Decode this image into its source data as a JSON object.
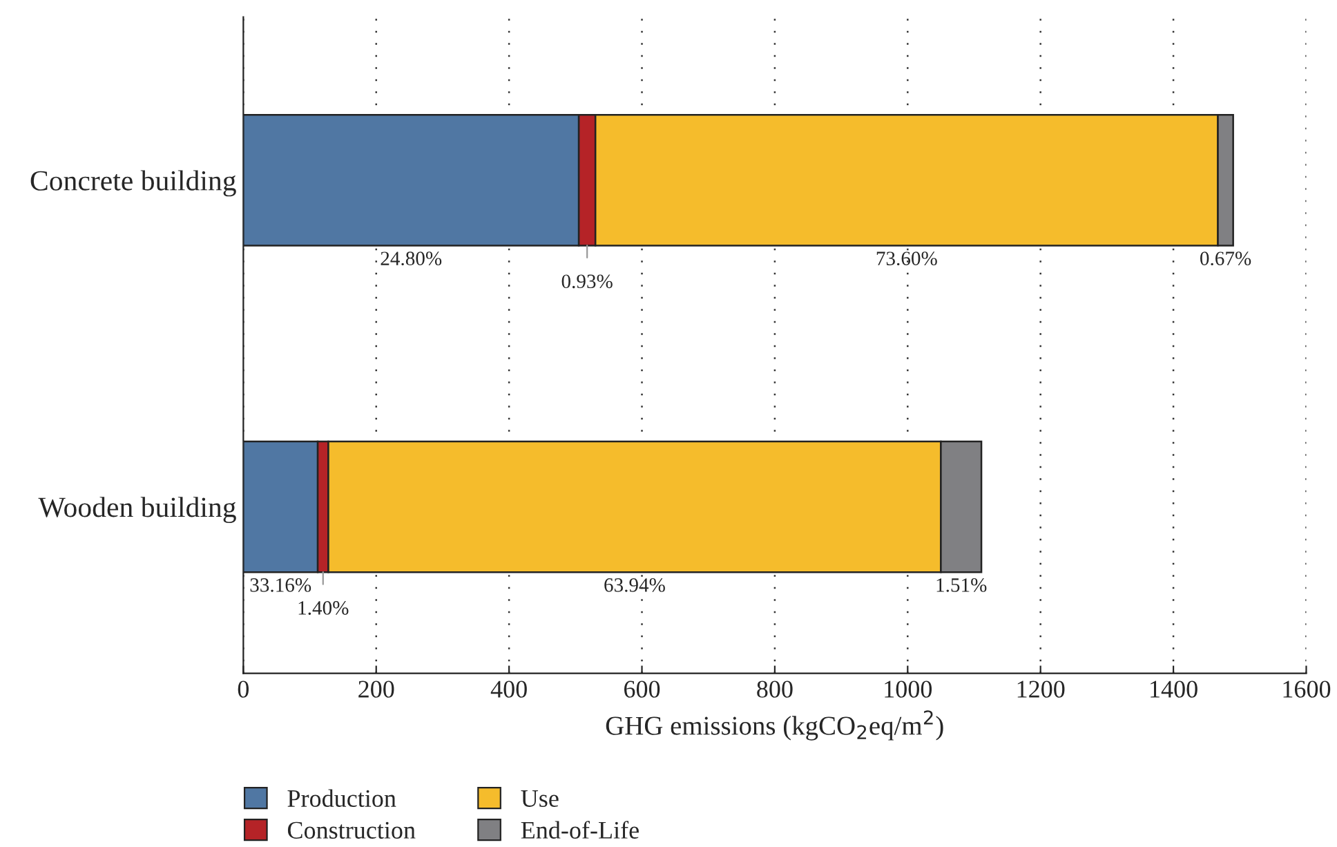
{
  "chart_data": {
    "type": "bar",
    "orientation": "horizontal",
    "stacked": true,
    "categories": [
      "Concrete building",
      "Wooden building"
    ],
    "series": [
      {
        "name": "Production",
        "color": "#5077a3",
        "values": [
          505,
          112
        ]
      },
      {
        "name": "Construction",
        "color": "#b52327",
        "values": [
          25,
          16
        ]
      },
      {
        "name": "Use",
        "color": "#f5bc2c",
        "values": [
          937,
          922
        ]
      },
      {
        "name": "End-of-Life",
        "color": "#808083",
        "values": [
          23,
          61
        ]
      }
    ],
    "annotations": [
      "24.80%",
      "0.93%",
      "73.60%",
      "0.67%",
      "33.16%",
      "1.40%",
      "63.94%",
      "1.51%"
    ],
    "xlabel": "GHG emissions (kgCO$_{2}$eq/m$^{2}$)",
    "xlim": [
      0,
      1600
    ],
    "xticks": [
      0,
      200,
      400,
      600,
      800,
      1000,
      1200,
      1400,
      1600
    ],
    "grid": "x",
    "legend": "bottom left"
  }
}
